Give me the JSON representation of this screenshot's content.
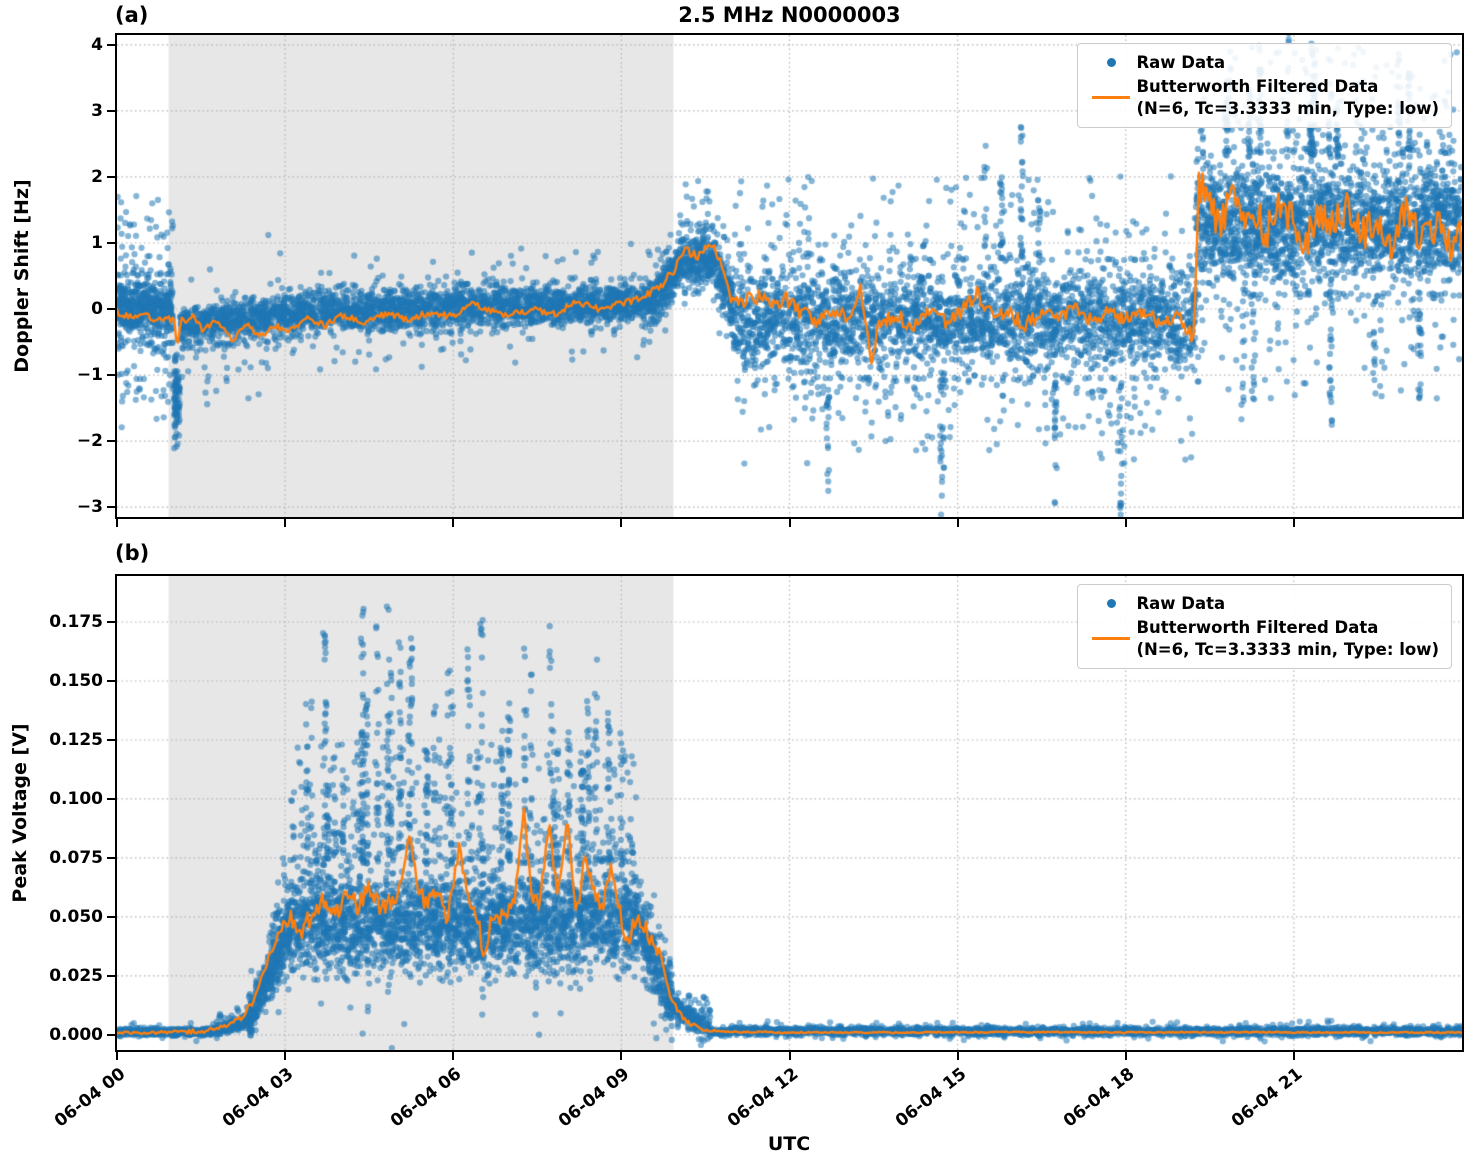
{
  "title": "2.5 MHz N0000003",
  "xlabel": "UTC",
  "legend": {
    "raw": "Raw Data",
    "filt1": "Butterworth Filtered Data",
    "filt2": "(N=6, Tc=3.3333 min, Type: low)"
  },
  "colors": {
    "raw": "#1f77b4",
    "filtered": "#ff7f0e",
    "shade": "#e7e7e7",
    "grid": "#b3b3b3",
    "axis": "#000000"
  },
  "seed": 20240604,
  "x_axis": {
    "lim_hours": [
      0,
      24
    ],
    "date": "06-04",
    "ticks": [
      [
        0,
        "06-04 00"
      ],
      [
        3,
        "06-04 03"
      ],
      [
        6,
        "06-04 06"
      ],
      [
        9,
        "06-04 09"
      ],
      [
        12,
        "06-04 12"
      ],
      [
        15,
        "06-04 15"
      ],
      [
        18,
        "06-04 18"
      ],
      [
        21,
        "06-04 21"
      ]
    ]
  },
  "chart_data": [
    {
      "id": "a",
      "type": "scatter",
      "panel_label": "(a)",
      "ylabel": "Doppler Shift [Hz]",
      "xlim": [
        0,
        24
      ],
      "ylim": [
        -3.15,
        4.15
      ],
      "yticks": [
        [
          -3,
          "−3"
        ],
        [
          -2,
          "−2"
        ],
        [
          -1,
          "−1"
        ],
        [
          0,
          "0"
        ],
        [
          1,
          "1"
        ],
        [
          2,
          "2"
        ],
        [
          3,
          "3"
        ],
        [
          4,
          "4"
        ]
      ],
      "shade_x": [
        0.92,
        9.93
      ],
      "grid": "dotted",
      "legend_loc": "upper right",
      "raw": {
        "name": "Raw Data",
        "bands_format": [
          "t_start_h",
          "t_end_h",
          "n_points",
          "center_start_Hz",
          "center_end_Hz",
          "dense_half_width",
          "outlier_extra",
          "outlier_frac",
          "outlier_up_bias"
        ],
        "bands": [
          [
            0.0,
            1.0,
            650,
            0.0,
            0.0,
            0.6,
            1.3,
            0.16,
            0.5
          ],
          [
            1.02,
            1.12,
            90,
            -1.3,
            -1.3,
            1.05,
            0.1,
            0.0,
            0.5
          ],
          [
            1.12,
            3.2,
            750,
            -0.25,
            -0.05,
            0.42,
            0.9,
            0.08,
            0.3
          ],
          [
            3.2,
            9.6,
            2300,
            -0.05,
            0.1,
            0.42,
            0.55,
            0.05,
            0.5
          ],
          [
            9.6,
            10.05,
            220,
            0.15,
            0.7,
            0.55,
            0.5,
            0.08,
            0.8
          ],
          [
            10.05,
            10.7,
            300,
            0.75,
            0.75,
            0.6,
            0.7,
            0.1,
            0.85
          ],
          [
            10.7,
            11.0,
            150,
            0.6,
            0.1,
            0.6,
            0.5,
            0.06,
            0.6
          ],
          [
            11.0,
            19.25,
            3100,
            -0.15,
            -0.15,
            1.05,
            1.3,
            0.12,
            0.45
          ],
          [
            19.25,
            24.0,
            2500,
            1.3,
            1.3,
            1.25,
            1.6,
            0.1,
            0.55
          ]
        ],
        "streaks_format": [
          "t_start_h",
          "t_end_h",
          "count",
          "height",
          "direction"
        ],
        "streaks": [
          [
            11.0,
            19.25,
            5,
            2.4,
            -1
          ],
          [
            11.0,
            19.25,
            4,
            2.6,
            1
          ],
          [
            19.25,
            24.0,
            12,
            2.0,
            1
          ],
          [
            19.25,
            24.0,
            5,
            2.3,
            -1
          ]
        ]
      },
      "filtered": {
        "name": "Butterworth Filtered Data (N=6, Tc=3.3333 min, Type: low)",
        "points": [
          [
            0,
            -0.05
          ],
          [
            0.2,
            -0.12
          ],
          [
            0.45,
            -0.06
          ],
          [
            0.7,
            -0.2
          ],
          [
            0.9,
            -0.12
          ],
          [
            1.02,
            -0.2
          ],
          [
            1.07,
            -0.55
          ],
          [
            1.15,
            -0.18
          ],
          [
            1.35,
            -0.12
          ],
          [
            1.55,
            -0.35
          ],
          [
            1.75,
            -0.15
          ],
          [
            2.05,
            -0.48
          ],
          [
            2.3,
            -0.22
          ],
          [
            2.55,
            -0.42
          ],
          [
            2.8,
            -0.25
          ],
          [
            3.1,
            -0.32
          ],
          [
            3.4,
            -0.15
          ],
          [
            3.7,
            -0.25
          ],
          [
            4.0,
            -0.1
          ],
          [
            4.4,
            -0.2
          ],
          [
            4.8,
            -0.08
          ],
          [
            5.2,
            -0.15
          ],
          [
            5.6,
            -0.05
          ],
          [
            6.0,
            -0.12
          ],
          [
            6.3,
            0.12
          ],
          [
            6.6,
            -0.02
          ],
          [
            7.0,
            -0.1
          ],
          [
            7.4,
            0.0
          ],
          [
            7.8,
            -0.08
          ],
          [
            8.2,
            0.1
          ],
          [
            8.6,
            0.0
          ],
          [
            9.0,
            0.08
          ],
          [
            9.4,
            0.18
          ],
          [
            9.7,
            0.35
          ],
          [
            9.95,
            0.6
          ],
          [
            10.15,
            0.9
          ],
          [
            10.35,
            0.78
          ],
          [
            10.55,
            0.95
          ],
          [
            10.7,
            0.88
          ],
          [
            10.85,
            0.5
          ],
          [
            10.95,
            0.1
          ],
          [
            11.2,
            0.12
          ],
          [
            11.45,
            0.18
          ],
          [
            11.7,
            0.05
          ],
          [
            11.95,
            0.15
          ],
          [
            12.2,
            -0.05
          ],
          [
            12.5,
            -0.2
          ],
          [
            12.8,
            -0.05
          ],
          [
            13.1,
            -0.15
          ],
          [
            13.25,
            0.35
          ],
          [
            13.38,
            -0.3
          ],
          [
            13.47,
            -0.75
          ],
          [
            13.6,
            -0.2
          ],
          [
            13.9,
            -0.1
          ],
          [
            14.2,
            -0.25
          ],
          [
            14.5,
            -0.05
          ],
          [
            14.8,
            -0.2
          ],
          [
            15.1,
            0.0
          ],
          [
            15.35,
            0.25
          ],
          [
            15.6,
            -0.1
          ],
          [
            15.9,
            -0.05
          ],
          [
            16.2,
            -0.25
          ],
          [
            16.5,
            -0.05
          ],
          [
            16.8,
            -0.15
          ],
          [
            17.1,
            0.0
          ],
          [
            17.4,
            -0.2
          ],
          [
            17.7,
            -0.05
          ],
          [
            18.0,
            -0.15
          ],
          [
            18.3,
            -0.05
          ],
          [
            18.6,
            -0.2
          ],
          [
            18.9,
            -0.1
          ],
          [
            19.1,
            -0.3
          ],
          [
            19.22,
            -0.5
          ],
          [
            19.3,
            1.95
          ],
          [
            19.5,
            1.55
          ],
          [
            19.7,
            1.3
          ],
          [
            19.9,
            1.7
          ],
          [
            20.1,
            1.2
          ],
          [
            20.3,
            1.5
          ],
          [
            20.5,
            1.15
          ],
          [
            20.75,
            1.55
          ],
          [
            21.0,
            1.3
          ],
          [
            21.2,
            1.0
          ],
          [
            21.45,
            1.45
          ],
          [
            21.7,
            1.2
          ],
          [
            21.95,
            1.6
          ],
          [
            22.2,
            1.1
          ],
          [
            22.45,
            1.35
          ],
          [
            22.7,
            0.95
          ],
          [
            22.95,
            1.5
          ],
          [
            23.2,
            1.2
          ],
          [
            23.4,
            1.05
          ],
          [
            23.6,
            1.45
          ],
          [
            23.8,
            0.9
          ],
          [
            24,
            1.1
          ]
        ],
        "noise_amp": [
          [
            0,
            0.05
          ],
          [
            9.5,
            0.05
          ],
          [
            9.8,
            0.07
          ],
          [
            10.9,
            0.07
          ],
          [
            11.3,
            0.11
          ],
          [
            19.2,
            0.11
          ],
          [
            19.35,
            0.27
          ],
          [
            24,
            0.27
          ]
        ]
      }
    },
    {
      "id": "b",
      "type": "scatter",
      "panel_label": "(b)",
      "ylabel": "Peak Voltage [V]",
      "xlabel": "UTC",
      "xlim": [
        0,
        24
      ],
      "ylim": [
        -0.0064,
        0.1945
      ],
      "yticks": [
        [
          0.0,
          "0.000"
        ],
        [
          0.025,
          "0.025"
        ],
        [
          0.05,
          "0.050"
        ],
        [
          0.075,
          "0.075"
        ],
        [
          0.1,
          "0.100"
        ],
        [
          0.125,
          "0.125"
        ],
        [
          0.15,
          "0.150"
        ],
        [
          0.175,
          "0.175"
        ]
      ],
      "shade_x": [
        0.92,
        9.93
      ],
      "grid": "dotted",
      "legend_loc": "upper right",
      "raw": {
        "name": "Raw Data",
        "bands_format": [
          "t_start_h",
          "t_end_h",
          "n_points",
          "center_start_V",
          "center_end_V",
          "dense_half_width",
          "outlier_extra",
          "outlier_frac",
          "outlier_up_bias"
        ],
        "bands": [
          [
            0.0,
            1.7,
            420,
            0.0012,
            0.0012,
            0.0022,
            0.002,
            0.04,
            0.6
          ],
          [
            1.7,
            2.35,
            200,
            0.0015,
            0.006,
            0.004,
            0.004,
            0.06,
            0.8
          ],
          [
            2.35,
            2.75,
            220,
            0.006,
            0.028,
            0.012,
            0.01,
            0.06,
            0.8
          ],
          [
            2.75,
            3.1,
            230,
            0.028,
            0.046,
            0.02,
            0.02,
            0.08,
            0.9
          ],
          [
            3.1,
            9.3,
            3100,
            0.048,
            0.048,
            0.03,
            0.05,
            0.1,
            0.92
          ],
          [
            9.3,
            9.9,
            280,
            0.045,
            0.015,
            0.02,
            0.025,
            0.06,
            0.8
          ],
          [
            9.9,
            10.6,
            220,
            0.012,
            0.003,
            0.008,
            0.008,
            0.05,
            0.8
          ],
          [
            10.6,
            24.0,
            2700,
            0.0015,
            0.0015,
            0.0024,
            0.0025,
            0.03,
            0.6
          ]
        ],
        "streaks_format": [
          "t_start_h",
          "t_end_h",
          "count",
          "height",
          "direction"
        ],
        "streaks": [
          [
            3.1,
            9.3,
            40,
            0.112,
            1
          ]
        ]
      },
      "filtered": {
        "name": "Butterworth Filtered Data (N=6, Tc=3.3333 min, Type: low)",
        "points": [
          [
            0,
            0.001
          ],
          [
            0.5,
            0.001
          ],
          [
            1.0,
            0.0012
          ],
          [
            1.5,
            0.0015
          ],
          [
            1.9,
            0.003
          ],
          [
            2.2,
            0.007
          ],
          [
            2.45,
            0.015
          ],
          [
            2.6,
            0.026
          ],
          [
            2.75,
            0.036
          ],
          [
            2.9,
            0.042
          ],
          [
            3.1,
            0.05
          ],
          [
            3.3,
            0.044
          ],
          [
            3.5,
            0.052
          ],
          [
            3.7,
            0.057
          ],
          [
            3.9,
            0.05
          ],
          [
            4.1,
            0.061
          ],
          [
            4.3,
            0.054
          ],
          [
            4.5,
            0.063
          ],
          [
            4.7,
            0.054
          ],
          [
            4.9,
            0.057
          ],
          [
            5.1,
            0.063
          ],
          [
            5.2,
            0.088
          ],
          [
            5.35,
            0.064
          ],
          [
            5.5,
            0.055
          ],
          [
            5.7,
            0.062
          ],
          [
            5.9,
            0.049
          ],
          [
            6.1,
            0.08
          ],
          [
            6.25,
            0.058
          ],
          [
            6.4,
            0.054
          ],
          [
            6.55,
            0.034
          ],
          [
            6.7,
            0.052
          ],
          [
            6.9,
            0.049
          ],
          [
            7.1,
            0.056
          ],
          [
            7.25,
            0.096
          ],
          [
            7.4,
            0.06
          ],
          [
            7.55,
            0.054
          ],
          [
            7.7,
            0.09
          ],
          [
            7.85,
            0.06
          ],
          [
            8.05,
            0.09
          ],
          [
            8.2,
            0.05
          ],
          [
            8.35,
            0.075
          ],
          [
            8.5,
            0.062
          ],
          [
            8.65,
            0.054
          ],
          [
            8.8,
            0.07
          ],
          [
            8.95,
            0.054
          ],
          [
            9.1,
            0.04
          ],
          [
            9.3,
            0.05
          ],
          [
            9.5,
            0.042
          ],
          [
            9.7,
            0.034
          ],
          [
            9.85,
            0.018
          ],
          [
            10.0,
            0.01
          ],
          [
            10.2,
            0.005
          ],
          [
            10.5,
            0.002
          ],
          [
            11.0,
            0.0013
          ],
          [
            12.0,
            0.001
          ],
          [
            14.0,
            0.001
          ],
          [
            16.0,
            0.0012
          ],
          [
            18.0,
            0.001
          ],
          [
            20.0,
            0.0011
          ],
          [
            22.0,
            0.001
          ],
          [
            24.0,
            0.001
          ]
        ],
        "noise_amp": [
          [
            0,
            0.0004
          ],
          [
            2.7,
            0.0015
          ],
          [
            3.0,
            0.004
          ],
          [
            9.4,
            0.004
          ],
          [
            9.9,
            0.0015
          ],
          [
            10.4,
            0.0006
          ],
          [
            10.9,
            0.0003
          ],
          [
            24,
            0.0003
          ]
        ]
      }
    }
  ]
}
